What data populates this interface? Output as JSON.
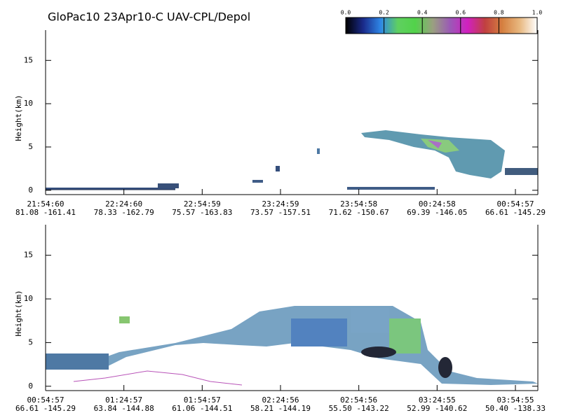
{
  "title": "GloPac10 23Apr10-C UAV-CPL/Depol",
  "colorbar": {
    "lim": [
      0,
      1
    ],
    "colors": [
      "#000000",
      "#1a2a8a",
      "#2e86e6",
      "#5fd060",
      "#52d24a",
      "#9aa080",
      "#9b59b6",
      "#d020c0",
      "#c04040",
      "#d58040",
      "#e8b880",
      "#ffffff"
    ],
    "ticks": [
      {
        "value": 0,
        "label": "0.0"
      },
      {
        "value": 0.2,
        "label": "0.2"
      },
      {
        "value": 0.4,
        "label": "0.4"
      },
      {
        "value": 0.6,
        "label": "0.6"
      },
      {
        "value": 0.8,
        "label": "0.8"
      },
      {
        "value": 1,
        "label": "1.0"
      }
    ]
  },
  "chart_data": [
    {
      "type": "heatmap",
      "ylabel": "Height(km)",
      "ylim": [
        -0.5,
        18.5
      ],
      "yticks": [
        0,
        5,
        10,
        15
      ],
      "xlim": [
        0,
        188.6
      ],
      "xticks": [
        {
          "value": 0,
          "label": "21:54:60",
          "location": "81.08 -161.41"
        },
        {
          "value": 30,
          "label": "22:24:60",
          "location": "78.33 -162.79"
        },
        {
          "value": 60,
          "label": "22:54:59",
          "location": "75.57 -163.83"
        },
        {
          "value": 90,
          "label": "23:24:59",
          "location": "73.57 -157.51"
        },
        {
          "value": 120,
          "label": "23:54:58",
          "location": "71.62 -150.67"
        },
        {
          "value": 150,
          "label": "00:24:58",
          "location": "69.39 -146.05"
        },
        {
          "value": 180,
          "label": "00:54:57",
          "location": "66.61 -145.29"
        }
      ]
    },
    {
      "type": "heatmap",
      "ylabel": "Height(km)",
      "ylim": [
        -0.5,
        18.5
      ],
      "yticks": [
        0,
        5,
        10,
        15
      ],
      "xlim": [
        0,
        188.6
      ],
      "xticks": [
        {
          "value": 0,
          "label": "00:54:57",
          "location": "66.61 -145.29"
        },
        {
          "value": 30,
          "label": "01:24:57",
          "location": "63.84 -144.88"
        },
        {
          "value": 60,
          "label": "01:54:57",
          "location": "61.06 -144.51"
        },
        {
          "value": 90,
          "label": "02:24:56",
          "location": "58.21 -144.19"
        },
        {
          "value": 120,
          "label": "02:54:56",
          "location": "55.50 -143.22"
        },
        {
          "value": 150,
          "label": "03:24:55",
          "location": "52.99 -140.62"
        },
        {
          "value": 180,
          "label": "03:54:55",
          "location": "50.40 -138.33"
        }
      ]
    }
  ]
}
